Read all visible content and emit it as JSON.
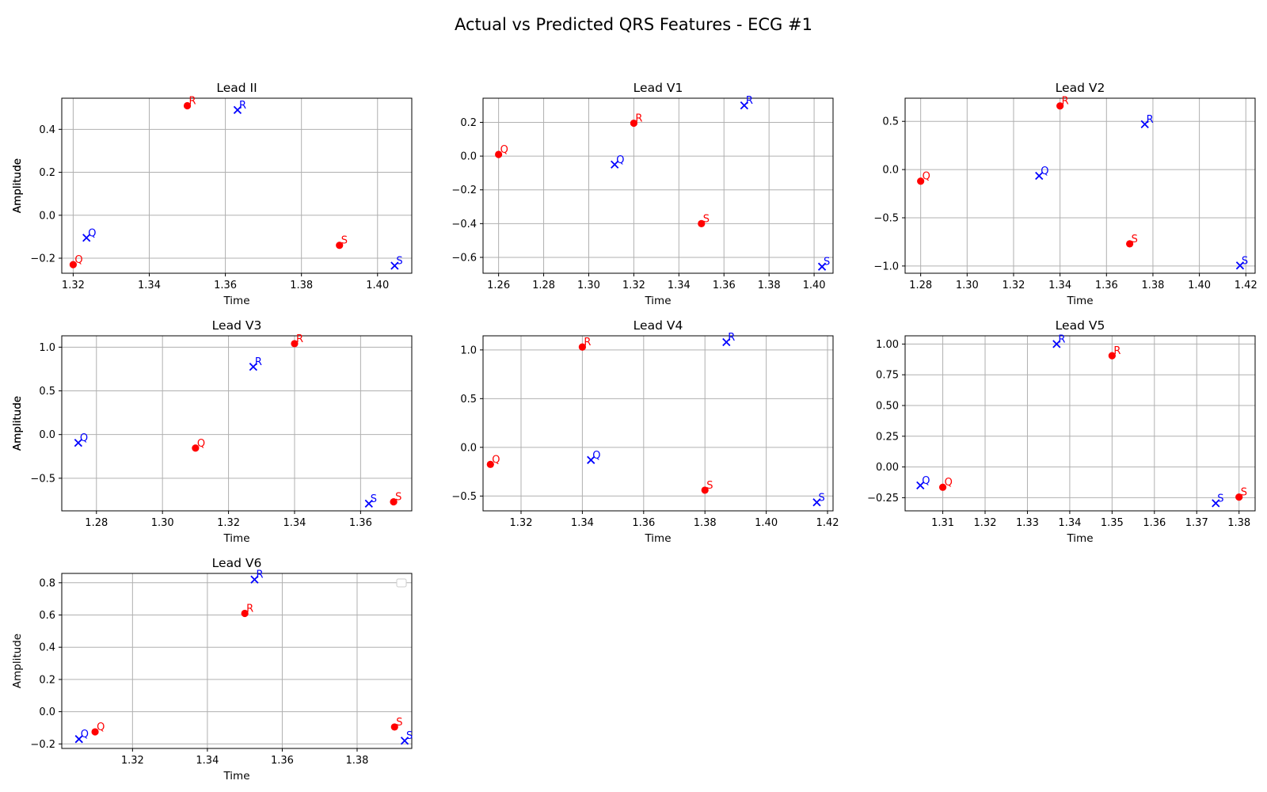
{
  "figure": {
    "title": "Actual vs Predicted QRS Features - ECG #1"
  },
  "colors": {
    "actual": "#ff0000",
    "predicted": "#0000ff",
    "grid": "#b0b0b0",
    "axes": "#000000"
  },
  "chart_data": [
    {
      "type": "scatter",
      "title": "Lead II",
      "xlabel": "Time",
      "ylabel": "Amplitude",
      "xlim": [
        1.317,
        1.409
      ],
      "ylim": [
        -0.27,
        0.545
      ],
      "xticks": [
        1.32,
        1.34,
        1.36,
        1.38,
        1.4
      ],
      "xtick_labels": [
        "1.32",
        "1.34",
        "1.36",
        "1.38",
        "1.40"
      ],
      "yticks": [
        -0.2,
        0.0,
        0.2,
        0.4
      ],
      "ytick_labels": [
        "−0.2",
        "0.0",
        "0.2",
        "0.4"
      ],
      "grid": true,
      "series": [
        {
          "marker": "circle",
          "color": "#ff0000",
          "points": [
            {
              "label": "Q",
              "x": 1.32,
              "y": -0.23
            },
            {
              "label": "R",
              "x": 1.35,
              "y": 0.51
            },
            {
              "label": "S",
              "x": 1.39,
              "y": -0.14
            }
          ]
        },
        {
          "marker": "x",
          "color": "#0000ff",
          "points": [
            {
              "label": "Q",
              "x": 1.3235,
              "y": -0.105
            },
            {
              "label": "R",
              "x": 1.3632,
              "y": 0.49
            },
            {
              "label": "S",
              "x": 1.4045,
              "y": -0.235
            }
          ]
        }
      ]
    },
    {
      "type": "scatter",
      "title": "Lead V1",
      "xlabel": "Time",
      "ylabel": "Amplitude",
      "xlim": [
        1.2531,
        1.4084
      ],
      "ylim": [
        -0.694,
        0.343
      ],
      "xticks": [
        1.26,
        1.28,
        1.3,
        1.32,
        1.34,
        1.36,
        1.38,
        1.4
      ],
      "xtick_labels": [
        "1.26",
        "1.28",
        "1.30",
        "1.32",
        "1.34",
        "1.36",
        "1.38",
        "1.40"
      ],
      "yticks": [
        -0.6,
        -0.4,
        -0.2,
        0.0,
        0.2
      ],
      "ytick_labels": [
        "−0.6",
        "−0.4",
        "−0.2",
        "0.0",
        "0.2"
      ],
      "grid": true,
      "series": [
        {
          "marker": "circle",
          "color": "#ff0000",
          "points": [
            {
              "label": "Q",
              "x": 1.26,
              "y": 0.01
            },
            {
              "label": "R",
              "x": 1.32,
              "y": 0.195
            },
            {
              "label": "S",
              "x": 1.35,
              "y": -0.4
            }
          ]
        },
        {
          "marker": "x",
          "color": "#0000ff",
          "points": [
            {
              "label": "Q",
              "x": 1.3115,
              "y": -0.05
            },
            {
              "label": "R",
              "x": 1.369,
              "y": 0.3
            },
            {
              "label": "S",
              "x": 1.4035,
              "y": -0.655
            }
          ]
        }
      ]
    },
    {
      "type": "scatter",
      "title": "Lead V2",
      "xlabel": "Time",
      "ylabel": "Amplitude",
      "xlim": [
        1.2733,
        1.424
      ],
      "ylim": [
        -1.075,
        0.74
      ],
      "xticks": [
        1.28,
        1.3,
        1.32,
        1.34,
        1.36,
        1.38,
        1.4,
        1.42
      ],
      "xtick_labels": [
        "1.28",
        "1.30",
        "1.32",
        "1.34",
        "1.36",
        "1.38",
        "1.40",
        "1.42"
      ],
      "yticks": [
        -1.0,
        -0.5,
        0.0,
        0.5
      ],
      "ytick_labels": [
        "−1.0",
        "−0.5",
        "0.0",
        "0.5"
      ],
      "grid": true,
      "series": [
        {
          "marker": "circle",
          "color": "#ff0000",
          "points": [
            {
              "label": "Q",
              "x": 1.28,
              "y": -0.12
            },
            {
              "label": "R",
              "x": 1.34,
              "y": 0.66
            },
            {
              "label": "S",
              "x": 1.37,
              "y": -0.77
            }
          ]
        },
        {
          "marker": "x",
          "color": "#0000ff",
          "points": [
            {
              "label": "Q",
              "x": 1.331,
              "y": -0.065
            },
            {
              "label": "R",
              "x": 1.3765,
              "y": 0.47
            },
            {
              "label": "S",
              "x": 1.4175,
              "y": -0.995
            }
          ]
        }
      ]
    },
    {
      "type": "scatter",
      "title": "Lead V3",
      "xlabel": "Time",
      "ylabel": "Amplitude",
      "xlim": [
        1.2695,
        1.3755
      ],
      "ylim": [
        -0.873,
        1.13
      ],
      "xticks": [
        1.28,
        1.3,
        1.32,
        1.34,
        1.36
      ],
      "xtick_labels": [
        "1.28",
        "1.30",
        "1.32",
        "1.34",
        "1.36"
      ],
      "yticks": [
        -0.5,
        0.0,
        0.5,
        1.0
      ],
      "ytick_labels": [
        "−0.5",
        "0.0",
        "0.5",
        "1.0"
      ],
      "grid": true,
      "series": [
        {
          "marker": "circle",
          "color": "#ff0000",
          "points": [
            {
              "label": "Q",
              "x": 1.31,
              "y": -0.155
            },
            {
              "label": "R",
              "x": 1.34,
              "y": 1.04
            },
            {
              "label": "S",
              "x": 1.37,
              "y": -0.77
            }
          ]
        },
        {
          "marker": "x",
          "color": "#0000ff",
          "points": [
            {
              "label": "Q",
              "x": 1.2745,
              "y": -0.095
            },
            {
              "label": "R",
              "x": 1.3275,
              "y": 0.775
            },
            {
              "label": "S",
              "x": 1.3625,
              "y": -0.79
            }
          ]
        }
      ]
    },
    {
      "type": "scatter",
      "title": "Lead V4",
      "xlabel": "Time",
      "ylabel": "Amplitude",
      "xlim": [
        1.3076,
        1.4218
      ],
      "ylim": [
        -0.652,
        1.145
      ],
      "xticks": [
        1.32,
        1.34,
        1.36,
        1.38,
        1.4,
        1.42
      ],
      "xtick_labels": [
        "1.32",
        "1.34",
        "1.36",
        "1.38",
        "1.40",
        "1.42"
      ],
      "yticks": [
        -0.5,
        0.0,
        0.5,
        1.0
      ],
      "ytick_labels": [
        "−0.5",
        "0.0",
        "0.5",
        "1.0"
      ],
      "grid": true,
      "series": [
        {
          "marker": "circle",
          "color": "#ff0000",
          "points": [
            {
              "label": "Q",
              "x": 1.31,
              "y": -0.175
            },
            {
              "label": "R",
              "x": 1.34,
              "y": 1.03
            },
            {
              "label": "S",
              "x": 1.38,
              "y": -0.44
            }
          ]
        },
        {
          "marker": "x",
          "color": "#0000ff",
          "points": [
            {
              "label": "Q",
              "x": 1.3428,
              "y": -0.13
            },
            {
              "label": "R",
              "x": 1.387,
              "y": 1.08
            },
            {
              "label": "S",
              "x": 1.4165,
              "y": -0.565
            }
          ]
        }
      ]
    },
    {
      "type": "scatter",
      "title": "Lead V5",
      "xlabel": "Time",
      "ylabel": "Amplitude",
      "xlim": [
        1.3011,
        1.3838
      ],
      "ylim": [
        -0.357,
        1.067
      ],
      "xticks": [
        1.31,
        1.32,
        1.33,
        1.34,
        1.35,
        1.36,
        1.37,
        1.38
      ],
      "xtick_labels": [
        "1.31",
        "1.32",
        "1.33",
        "1.34",
        "1.35",
        "1.36",
        "1.37",
        "1.38"
      ],
      "yticks": [
        -0.25,
        0.0,
        0.25,
        0.5,
        0.75,
        1.0
      ],
      "ytick_labels": [
        "−0.25",
        "0.00",
        "0.25",
        "0.50",
        "0.75",
        "1.00"
      ],
      "grid": true,
      "series": [
        {
          "marker": "circle",
          "color": "#ff0000",
          "points": [
            {
              "label": "Q",
              "x": 1.31,
              "y": -0.165
            },
            {
              "label": "R",
              "x": 1.35,
              "y": 0.905
            },
            {
              "label": "S",
              "x": 1.38,
              "y": -0.245
            }
          ]
        },
        {
          "marker": "x",
          "color": "#0000ff",
          "points": [
            {
              "label": "Q",
              "x": 1.3047,
              "y": -0.15
            },
            {
              "label": "R",
              "x": 1.3369,
              "y": 1.0
            },
            {
              "label": "S",
              "x": 1.3745,
              "y": -0.295
            }
          ]
        }
      ]
    },
    {
      "type": "scatter",
      "title": "Lead V6",
      "xlabel": "Time",
      "ylabel": "Amplitude",
      "xlim": [
        1.3011,
        1.3946
      ],
      "ylim": [
        -0.228,
        0.858
      ],
      "xticks": [
        1.32,
        1.34,
        1.36,
        1.38
      ],
      "xtick_labels": [
        "1.32",
        "1.34",
        "1.36",
        "1.38"
      ],
      "yticks": [
        -0.2,
        0.0,
        0.2,
        0.4,
        0.6,
        0.8
      ],
      "ytick_labels": [
        "−0.2",
        "0.0",
        "0.2",
        "0.4",
        "0.6",
        "0.8"
      ],
      "grid": true,
      "empty_legend": "top-right",
      "series": [
        {
          "marker": "circle",
          "color": "#ff0000",
          "points": [
            {
              "label": "Q",
              "x": 1.31,
              "y": -0.125
            },
            {
              "label": "R",
              "x": 1.35,
              "y": 0.61
            },
            {
              "label": "S",
              "x": 1.39,
              "y": -0.095
            }
          ]
        },
        {
          "marker": "x",
          "color": "#0000ff",
          "points": [
            {
              "label": "Q",
              "x": 1.3057,
              "y": -0.17
            },
            {
              "label": "R",
              "x": 1.3526,
              "y": 0.82
            },
            {
              "label": "S",
              "x": 1.3927,
              "y": -0.18
            }
          ]
        }
      ]
    }
  ]
}
